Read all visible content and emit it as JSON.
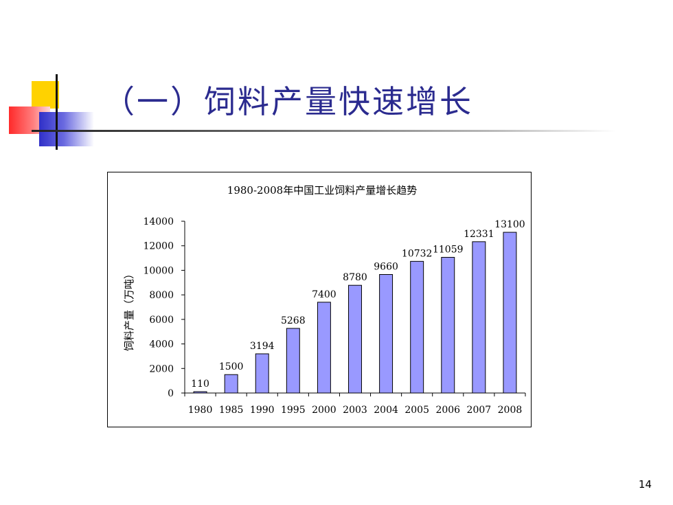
{
  "slide": {
    "title": "（一）饲料产量快速增长",
    "page_number": "14"
  },
  "colors": {
    "title": "#2b2b8f",
    "bar_fill": "#9999ff",
    "bar_stroke": "#000000"
  },
  "chart_data": {
    "type": "bar",
    "title": "1980-2008年中国工业饲料产量增长趋势",
    "xlabel": "",
    "ylabel": "饲料产量（万吨）",
    "categories": [
      "1980",
      "1985",
      "1990",
      "1995",
      "2000",
      "2003",
      "2004",
      "2005",
      "2006",
      "2007",
      "2008"
    ],
    "values": [
      110,
      1500,
      3194,
      5268,
      7400,
      8780,
      9660,
      10732,
      11059,
      12331,
      13100
    ],
    "data_labels": [
      "110",
      "1500",
      "3194",
      "5268",
      "7400",
      "8780",
      "9660",
      "10732",
      "11059",
      "12331",
      "13100"
    ],
    "ylim": [
      0,
      14000
    ],
    "yticks": [
      "0",
      "2000",
      "4000",
      "6000",
      "8000",
      "10000",
      "12000",
      "14000"
    ],
    "grid": false,
    "legend": "none"
  }
}
